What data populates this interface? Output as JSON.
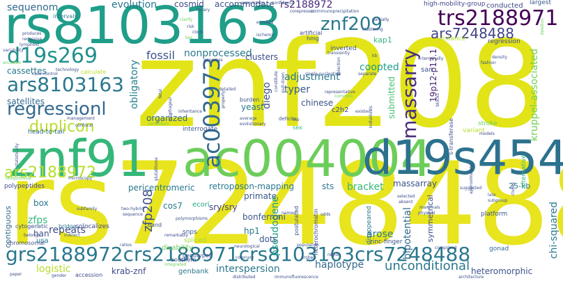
{
  "words": [
    {
      "text": "rs8103163",
      "color": "#1f9e89"
    },
    {
      "text": "znf208",
      "color": "#e2e418"
    },
    {
      "text": "rs7248488",
      "color": "#e8e41d"
    },
    {
      "text": "znf91",
      "color": "#35b779"
    },
    {
      "text": "ac004004",
      "color": "#6ccd5a"
    },
    {
      "text": "d19s454",
      "color": "#2c728e"
    },
    {
      "text": "grs2188972crs2188971crs8103163crs7248488",
      "color": "#2a788e"
    },
    {
      "text": "trs2188971",
      "color": "#440154"
    },
    {
      "text": "znf209",
      "color": "#2a788e"
    },
    {
      "text": "d19s269",
      "color": "#21918c"
    },
    {
      "text": "ars8103163",
      "color": "#2a788e"
    },
    {
      "text": "regressionl",
      "color": "#31688e"
    },
    {
      "text": "ac003973",
      "color": "#31688e"
    },
    {
      "text": "massarry",
      "color": "#472d7b"
    },
    {
      "text": "ars7248488",
      "color": "#414487"
    },
    {
      "text": "ars2188972",
      "color": "#b5de2b"
    },
    {
      "text": "duplicon",
      "color": "#b5de2b"
    },
    {
      "text": "fossil",
      "color": "#3b528b"
    },
    {
      "text": "nonprocessed",
      "color": "#2a788e"
    },
    {
      "text": "sequenom",
      "color": "#31688e"
    },
    {
      "text": "evolution",
      "color": "#2a788e"
    },
    {
      "text": "cosmid",
      "color": "#3e4a89"
    },
    {
      "text": "accommodate",
      "color": "#3b528b"
    },
    {
      "text": "rs2188972",
      "color": "#482878"
    },
    {
      "text": "satellites",
      "color": "#31688e"
    },
    {
      "text": "cassettes",
      "color": "#2a788e"
    },
    {
      "text": "obligatory",
      "color": "#26828e"
    },
    {
      "text": "clusters",
      "color": "#3e4a89"
    },
    {
      "text": "diego",
      "color": "#3b528b"
    },
    {
      "text": "adjustment",
      "color": "#2a788e"
    },
    {
      "text": "coopted",
      "color": "#1f9e89"
    },
    {
      "text": "typer",
      "color": "#38598c"
    },
    {
      "text": "submitted",
      "color": "#46c06f"
    },
    {
      "text": "kruppel-associated",
      "color": "#73d055"
    },
    {
      "text": "19p12-p13.1",
      "color": "#482173"
    },
    {
      "text": "chinese",
      "color": "#3b528b"
    },
    {
      "text": "yeast",
      "color": "#2a788e"
    },
    {
      "text": "c2h2",
      "color": "#3e4a89"
    },
    {
      "text": "organized",
      "color": "#31688e"
    },
    {
      "text": "pericentromeric",
      "color": "#2a788e"
    },
    {
      "text": "retroposon-mapping",
      "color": "#2a788e"
    },
    {
      "text": "bracket",
      "color": "#35b779"
    },
    {
      "text": "massarray",
      "color": "#3b528b"
    },
    {
      "text": "primate",
      "color": "#38598c"
    },
    {
      "text": "sts",
      "color": "#2a788e"
    },
    {
      "text": "25-kb",
      "color": "#2a788e"
    },
    {
      "text": "zfp208",
      "color": "#3b528b"
    },
    {
      "text": "polypeptides",
      "color": "#3e4a89"
    },
    {
      "text": "cos7",
      "color": "#2a788e"
    },
    {
      "text": "sry/sry",
      "color": "#433e85"
    },
    {
      "text": "ecori",
      "color": "#22a884"
    },
    {
      "text": "zfps",
      "color": "#35b779"
    },
    {
      "text": "repeats",
      "color": "#3e4a89"
    },
    {
      "text": "han",
      "color": "#3b528b"
    },
    {
      "text": "usa",
      "color": "#2a788e"
    },
    {
      "text": "box",
      "color": "#2a788e"
    },
    {
      "text": "pseudogene",
      "color": "#1f9e89"
    },
    {
      "text": "bonferroni",
      "color": "#38598c"
    },
    {
      "text": "hp1",
      "color": "#2a788e"
    },
    {
      "text": "dots",
      "color": "#3b528b"
    },
    {
      "text": "arose",
      "color": "#2a788e"
    },
    {
      "text": "bipotential",
      "color": "#31688e"
    },
    {
      "text": "chi-squared",
      "color": "#2a788e"
    },
    {
      "text": "symmetrical",
      "color": "#3e4a89"
    },
    {
      "text": "contiguous",
      "color": "#31688e"
    },
    {
      "text": "logistic",
      "color": "#b5de2b"
    },
    {
      "text": "krab-znf",
      "color": "#3e4a89"
    },
    {
      "text": "interspersion",
      "color": "#2a788e"
    },
    {
      "text": "haplotype",
      "color": "#31688e"
    },
    {
      "text": "unconditional",
      "color": "#2a788e"
    },
    {
      "text": "heteromorphic",
      "color": "#3b528b"
    },
    {
      "text": "genbank",
      "color": "#2a788e"
    },
    {
      "text": "accession",
      "color": "#3e4a89"
    },
    {
      "text": "stroke",
      "color": "#73d055"
    },
    {
      "text": "san",
      "color": "#3b528b"
    },
    {
      "text": "inverted",
      "color": "#3b528b"
    },
    {
      "text": "regression",
      "color": "#3e4a89"
    },
    {
      "text": "high-mobility-group",
      "color": "#414487"
    },
    {
      "text": "conducted",
      "color": "#3e4a89"
    },
    {
      "text": "largest",
      "color": "#38598c"
    },
    {
      "text": "kap1",
      "color": "#35b779"
    },
    {
      "text": "hmg",
      "color": "#3b528b"
    },
    {
      "text": "artificial",
      "color": "#3e4a89"
    },
    {
      "text": "distance",
      "color": "#b5de2b"
    },
    {
      "text": "interrogate",
      "color": "#3b528b"
    },
    {
      "text": "disability",
      "color": "#6ccd5a"
    },
    {
      "text": "spliced",
      "color": "#a0da39"
    },
    {
      "text": "genotyped",
      "color": "#3b528b"
    },
    {
      "text": "southern",
      "color": "#3e4a89"
    },
    {
      "text": "snps",
      "color": "#3b528b"
    },
    {
      "text": "band",
      "color": "#3b528b"
    },
    {
      "text": "cytogenetic",
      "color": "#3b528b"
    },
    {
      "text": "bridge",
      "color": "#2a788e"
    },
    {
      "text": "colocalizes",
      "color": "#3e4a89"
    },
    {
      "text": "platform",
      "color": "#3b528b"
    },
    {
      "text": "gonad",
      "color": "#31688e"
    },
    {
      "text": "zinc-finger",
      "color": "#3b528b"
    },
    {
      "text": "disappeared",
      "color": "#2a788e"
    },
    {
      "text": "chromosomal",
      "color": "#3b528b"
    },
    {
      "text": "heterochromatin",
      "color": "#3e4a89"
    },
    {
      "text": "postulated",
      "color": "#3b528b"
    },
    {
      "text": "head-to-tail",
      "color": "#31688e"
    },
    {
      "text": "burden",
      "color": "#3b528b"
    },
    {
      "text": "deficits",
      "color": "#3b528b"
    },
    {
      "text": "sex",
      "color": "#35b779"
    },
    {
      "text": "variant",
      "color": "#b5de2b"
    },
    {
      "text": "intervals",
      "color": "#2a788e"
    },
    {
      "text": "calculate",
      "color": "#b5de2b"
    },
    {
      "text": "technology",
      "color": "#3b528b"
    },
    {
      "text": "produces",
      "color": "#3e4a89"
    },
    {
      "text": "recessive",
      "color": "#3e4a89"
    },
    {
      "text": "lymphoid",
      "color": "#3b528b"
    },
    {
      "text": "variability",
      "color": "#3b528b"
    },
    {
      "text": "encoded",
      "color": "#6ccd5a"
    },
    {
      "text": "case-control",
      "color": "#3b528b"
    },
    {
      "text": "management",
      "color": "#3e4a89"
    },
    {
      "text": "confocal",
      "color": "#3b528b"
    },
    {
      "text": "correction",
      "color": "#6ccd5a"
    },
    {
      "text": "inheritance",
      "color": "#3e4a89"
    },
    {
      "text": "detailed",
      "color": "#3b528b"
    },
    {
      "text": "average",
      "color": "#3b528b"
    },
    {
      "text": "evolutionary",
      "color": "#3e4a89"
    },
    {
      "text": "existed",
      "color": "#3b528b"
    },
    {
      "text": "representative",
      "color": "#3e4a89"
    },
    {
      "text": "common",
      "color": "#6ccd5a"
    },
    {
      "text": "single-nucleotide",
      "color": "#3b528b"
    },
    {
      "text": "separate",
      "color": "#3e4a89"
    },
    {
      "text": "transiently",
      "color": "#3b528b"
    },
    {
      "text": "density",
      "color": "#3b528b"
    },
    {
      "text": "n-terminally",
      "color": "#3e4a89"
    },
    {
      "text": "fashion",
      "color": "#3b528b"
    },
    {
      "text": "models",
      "color": "#3e4a89"
    },
    {
      "text": "suggested",
      "color": "#3b528b"
    },
    {
      "text": "late",
      "color": "#3b528b"
    },
    {
      "text": "subgroup",
      "color": "#3b528b"
    },
    {
      "text": "clones",
      "color": "#3e4a89"
    },
    {
      "text": "alternative",
      "color": "#35b779"
    },
    {
      "text": "s-transferase",
      "color": "#3b528b"
    },
    {
      "text": "blocks",
      "color": "#3e4a89"
    },
    {
      "text": "approximately",
      "color": "#3b528b"
    },
    {
      "text": "selected",
      "color": "#3b528b"
    },
    {
      "text": "absent",
      "color": "#3e4a89"
    },
    {
      "text": "mammals",
      "color": "#3b528b"
    },
    {
      "text": "physical",
      "color": "#3b528b"
    },
    {
      "text": "odds",
      "color": "#3b528b"
    },
    {
      "text": "named",
      "color": "#3e4a89"
    },
    {
      "text": "probes",
      "color": "#3b528b"
    },
    {
      "text": "region",
      "color": "#3e4a89"
    },
    {
      "text": "population",
      "color": "#3b528b"
    },
    {
      "text": "comprised",
      "color": "#3e4a89"
    },
    {
      "text": "architecture",
      "color": "#3b528b"
    },
    {
      "text": "distributed",
      "color": "#3e4a89"
    },
    {
      "text": "immunofluorescence",
      "color": "#3b528b"
    },
    {
      "text": "paper",
      "color": "#3e4a89"
    },
    {
      "text": "gender",
      "color": "#3b528b"
    },
    {
      "text": "ratios",
      "color": "#3b528b"
    },
    {
      "text": "integrated",
      "color": "#6ccd5a"
    },
    {
      "text": "neurological",
      "color": "#3e4a89"
    },
    {
      "text": "coronary",
      "color": "#3b528b"
    },
    {
      "text": "indirect",
      "color": "#3b528b"
    },
    {
      "text": "belongs",
      "color": "#3e4a89"
    },
    {
      "text": "subfamily",
      "color": "#3b528b"
    },
    {
      "text": "polymorphisms",
      "color": "#3b528b"
    },
    {
      "text": "remarkably",
      "color": "#3e4a89"
    },
    {
      "text": "two-hybrid",
      "color": "#3b528b"
    },
    {
      "text": "sequence",
      "color": "#3e4a89"
    },
    {
      "text": "microscopy",
      "color": "#3b528b"
    },
    {
      "text": "ubiquitously",
      "color": "#6ccd5a"
    },
    {
      "text": "statistically",
      "color": "#3b528b"
    },
    {
      "text": "glutathione",
      "color": "#3e4a89"
    },
    {
      "text": "fetal",
      "color": "#3b528b"
    },
    {
      "text": "esophageal",
      "color": "#3e4a89"
    },
    {
      "text": "property",
      "color": "#3b528b"
    },
    {
      "text": "constitute",
      "color": "#3e4a89"
    },
    {
      "text": "pull-down",
      "color": "#3b528b"
    },
    {
      "text": "genomes",
      "color": "#3e4a89"
    },
    {
      "text": "ischemic",
      "color": "#3b528b"
    },
    {
      "text": "enrolled",
      "color": "#3e4a89"
    },
    {
      "text": "clarify",
      "color": "#6ccd5a"
    },
    {
      "text": "risk",
      "color": "#3b528b"
    },
    {
      "text": "clock",
      "color": "#3e4a89"
    },
    {
      "text": "boc",
      "color": "#6ccd5a"
    },
    {
      "text": "library",
      "color": "#3b528b"
    },
    {
      "text": "exon/intron",
      "color": "#3e4a89"
    },
    {
      "text": "confidence",
      "color": "#3b528b"
    },
    {
      "text": "corepressor",
      "color": "#3e4a89"
    },
    {
      "text": "coimmunoprecipitation",
      "color": "#3b528b"
    },
    {
      "text": "partially",
      "color": "#3e4a89"
    },
    {
      "text": "clustering",
      "color": "#3b528b"
    },
    {
      "text": "selection",
      "color": "#3e4a89"
    },
    {
      "text": "kb",
      "color": "#3b528b"
    },
    {
      "text": "mb",
      "color": "#3e4a89"
    },
    {
      "text": "individuals",
      "color": "#3b528b"
    },
    {
      "text": "deletion",
      "color": "#6ccd5a"
    }
  ]
}
